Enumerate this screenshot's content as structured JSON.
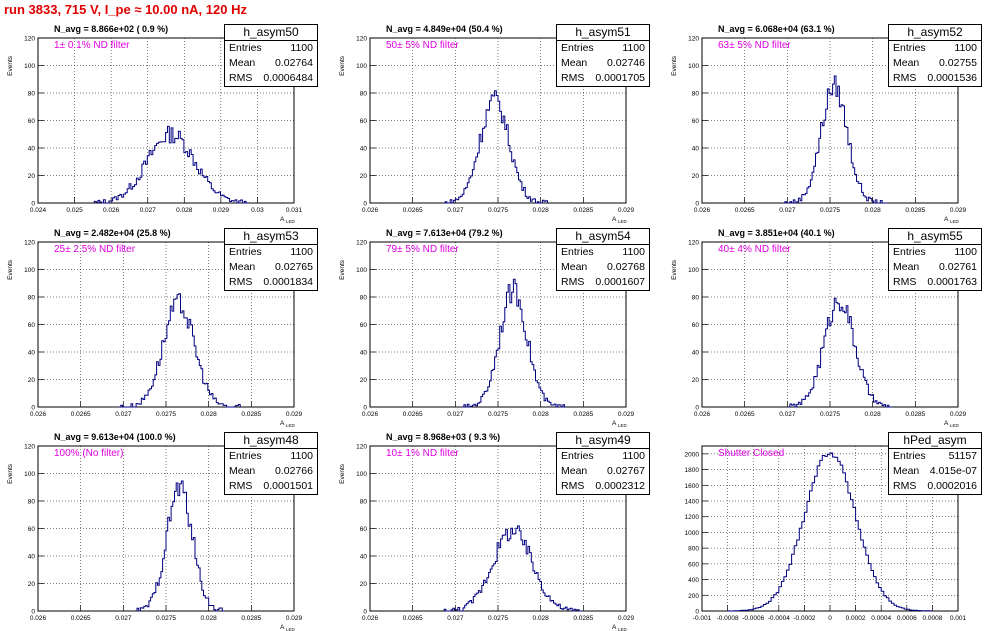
{
  "page_title": "run 3833,   715 V, I_pe ≈ 10.00 nA, 120 Hz",
  "colors": {
    "title": "#e00000",
    "hist": "#000080",
    "filter_label": "#e000e0"
  },
  "chart_data": [
    {
      "type": "histogram",
      "name": "h_asym50",
      "navg": "N_avg = 8.866e+02 ( 0.9 %)",
      "filter": "1± 0.1% ND filter",
      "stats": {
        "entries": "1100",
        "mean": "0.02764",
        "rms": "0.0006484"
      },
      "xlabel": "A",
      "xlabel_sub": "LED",
      "ylabel": "Events",
      "xlim": [
        0.024,
        0.031
      ],
      "ylim": [
        0,
        120
      ],
      "xticks": [
        "0.024",
        "0.025",
        "0.026",
        "0.027",
        "0.028",
        "0.029",
        "0.03",
        "0.031"
      ],
      "xtick_values": [
        0.024,
        0.025,
        0.026,
        0.027,
        0.028,
        0.029,
        0.03,
        0.031
      ],
      "yticks": [
        "0",
        "20",
        "40",
        "60",
        "80",
        "100",
        "120"
      ],
      "hist": {
        "centre": 0.02764,
        "sigma": 0.00065,
        "peak": 50,
        "half_range": 0.0021,
        "step": 5e-05
      }
    },
    {
      "type": "histogram",
      "name": "h_asym51",
      "navg": "N_avg = 4.849e+04 (50.4 %)",
      "filter": "50± 5% ND filter",
      "stats": {
        "entries": "1100",
        "mean": "0.02746",
        "rms": "0.0001705"
      },
      "xlabel": "A",
      "xlabel_sub": "LED",
      "ylabel": "Events",
      "xlim": [
        0.026,
        0.029
      ],
      "ylim": [
        0,
        120
      ],
      "xticks": [
        "0.026",
        "0.0265",
        "0.027",
        "0.0275",
        "0.028",
        "0.0285",
        "0.029"
      ],
      "xtick_values": [
        0.026,
        0.0265,
        0.027,
        0.0275,
        0.028,
        0.0285,
        0.029
      ],
      "yticks": [
        "0",
        "20",
        "40",
        "60",
        "80",
        "100",
        "120"
      ],
      "hist": {
        "centre": 0.02746,
        "sigma": 0.00017,
        "peak": 75,
        "half_range": 0.0006,
        "step": 2e-05
      }
    },
    {
      "type": "histogram",
      "name": "h_asym52",
      "navg": "N_avg = 6.068e+04 (63.1 %)",
      "filter": "63± 5% ND filter",
      "stats": {
        "entries": "1100",
        "mean": "0.02755",
        "rms": "0.0001536"
      },
      "xlabel": "A",
      "xlabel_sub": "LED",
      "ylabel": "Events",
      "xlim": [
        0.026,
        0.029
      ],
      "ylim": [
        0,
        120
      ],
      "xticks": [
        "0.026",
        "0.0265",
        "0.027",
        "0.0275",
        "0.028",
        "0.0285",
        "0.029"
      ],
      "xtick_values": [
        0.026,
        0.0265,
        0.027,
        0.0275,
        0.028,
        0.0285,
        0.029
      ],
      "yticks": [
        "0",
        "20",
        "40",
        "60",
        "80",
        "100",
        "120"
      ],
      "hist": {
        "centre": 0.02755,
        "sigma": 0.000154,
        "peak": 85,
        "half_range": 0.0006,
        "step": 2e-05
      }
    },
    {
      "type": "histogram",
      "name": "h_asym53",
      "navg": "N_avg = 2.482e+04 (25.8 %)",
      "filter": "25± 2.5% ND filter",
      "stats": {
        "entries": "1100",
        "mean": "0.02765",
        "rms": "0.0001834"
      },
      "xlabel": "A",
      "xlabel_sub": "LED",
      "ylabel": "Events",
      "xlim": [
        0.026,
        0.029
      ],
      "ylim": [
        0,
        120
      ],
      "xticks": [
        "0.026",
        "0.0265",
        "0.027",
        "0.0275",
        "0.028",
        "0.0285",
        "0.029"
      ],
      "xtick_values": [
        0.026,
        0.0265,
        0.027,
        0.0275,
        0.028,
        0.0285,
        0.029
      ],
      "yticks": [
        "0",
        "20",
        "40",
        "60",
        "80",
        "100",
        "120"
      ],
      "hist": {
        "centre": 0.02765,
        "sigma": 0.000183,
        "peak": 75,
        "half_range": 0.0007,
        "step": 2e-05
      }
    },
    {
      "type": "histogram",
      "name": "h_asym54",
      "navg": "N_avg = 7.613e+04 (79.2 %)",
      "filter": "79± 5% ND filter",
      "stats": {
        "entries": "1100",
        "mean": "0.02768",
        "rms": "0.0001607"
      },
      "xlabel": "A",
      "xlabel_sub": "LED",
      "ylabel": "Events",
      "xlim": [
        0.026,
        0.029
      ],
      "ylim": [
        0,
        120
      ],
      "xticks": [
        "0.026",
        "0.0265",
        "0.027",
        "0.0275",
        "0.028",
        "0.0285",
        "0.029"
      ],
      "xtick_values": [
        0.026,
        0.0265,
        0.027,
        0.0275,
        0.028,
        0.0285,
        0.029
      ],
      "yticks": [
        "0",
        "20",
        "40",
        "60",
        "80",
        "100",
        "120"
      ],
      "hist": {
        "centre": 0.02768,
        "sigma": 0.000161,
        "peak": 85,
        "half_range": 0.0006,
        "step": 2e-05
      }
    },
    {
      "type": "histogram",
      "name": "h_asym55",
      "navg": "N_avg = 3.851e+04 (40.1 %)",
      "filter": "40± 4% ND filter",
      "stats": {
        "entries": "1100",
        "mean": "0.02761",
        "rms": "0.0001763"
      },
      "xlabel": "A",
      "xlabel_sub": "LED",
      "ylabel": "Events",
      "xlim": [
        0.026,
        0.029
      ],
      "ylim": [
        0,
        120
      ],
      "xticks": [
        "0.026",
        "0.0265",
        "0.027",
        "0.0275",
        "0.028",
        "0.0285",
        "0.029"
      ],
      "xtick_values": [
        0.026,
        0.0265,
        0.027,
        0.0275,
        0.028,
        0.0285,
        0.029
      ],
      "yticks": [
        "0",
        "20",
        "40",
        "60",
        "80",
        "100",
        "120"
      ],
      "hist": {
        "centre": 0.02761,
        "sigma": 0.000176,
        "peak": 78,
        "half_range": 0.0006,
        "step": 2e-05
      }
    },
    {
      "type": "histogram",
      "name": "h_asym48",
      "navg": "N_avg = 9.613e+04 (100.0 %)",
      "filter": "100% (No filter)",
      "stats": {
        "entries": "1100",
        "mean": "0.02766",
        "rms": "0.0001501"
      },
      "xlabel": "A",
      "xlabel_sub": "LED",
      "ylabel": "Events",
      "xlim": [
        0.026,
        0.029
      ],
      "ylim": [
        0,
        120
      ],
      "xticks": [
        "0.026",
        "0.0265",
        "0.027",
        "0.0275",
        "0.028",
        "0.0285",
        "0.029"
      ],
      "xtick_values": [
        0.026,
        0.0265,
        0.027,
        0.0275,
        0.028,
        0.0285,
        0.029
      ],
      "yticks": [
        "0",
        "20",
        "40",
        "60",
        "80",
        "100",
        "120"
      ],
      "hist": {
        "centre": 0.02766,
        "sigma": 0.00015,
        "peak": 90,
        "half_range": 0.0005,
        "step": 2e-05
      }
    },
    {
      "type": "histogram",
      "name": "h_asym49",
      "navg": "N_avg = 8.968e+03 ( 9.3 %)",
      "filter": "10± 1% ND filter",
      "stats": {
        "entries": "1100",
        "mean": "0.02767",
        "rms": "0.0002312"
      },
      "xlabel": "A",
      "xlabel_sub": "LED",
      "ylabel": "Events",
      "xlim": [
        0.026,
        0.029
      ],
      "ylim": [
        0,
        120
      ],
      "xticks": [
        "0.026",
        "0.0265",
        "0.027",
        "0.0275",
        "0.028",
        "0.0285",
        "0.029"
      ],
      "xtick_values": [
        0.026,
        0.0265,
        0.027,
        0.0275,
        0.028,
        0.0285,
        0.029
      ],
      "yticks": [
        "0",
        "20",
        "40",
        "60",
        "80",
        "100",
        "120"
      ],
      "hist": {
        "centre": 0.02767,
        "sigma": 0.000231,
        "peak": 58,
        "half_range": 0.0008,
        "step": 2e-05
      }
    },
    {
      "type": "histogram",
      "name": "hPed_asym",
      "navg": "",
      "filter": "Shutter Closed",
      "stats": {
        "entries": "51157",
        "mean": "4.015e-07",
        "rms": "0.0002016"
      },
      "xlabel": "",
      "xlabel_sub": "",
      "ylabel": "",
      "xlim": [
        -0.001,
        0.001
      ],
      "ylim": [
        0,
        2100
      ],
      "xticks": [
        "-0.001",
        "-0.0008",
        "-0.0006",
        "-0.0004",
        "-0.0002",
        "0",
        "0.0002",
        "0.0004",
        "0.0006",
        "0.0008",
        "0.001"
      ],
      "xtick_values": [
        -0.001,
        -0.0008,
        -0.0006,
        -0.0004,
        -0.0002,
        0,
        0.0002,
        0.0004,
        0.0006,
        0.0008,
        0.001
      ],
      "yticks": [
        "0",
        "200",
        "400",
        "600",
        "800",
        "1000",
        "1200",
        "1400",
        "1600",
        "1800",
        "2000"
      ],
      "hist": {
        "centre": 0.0,
        "sigma": 0.0002,
        "peak": 2020,
        "half_range": 0.0008,
        "step": 2e-05
      }
    }
  ]
}
